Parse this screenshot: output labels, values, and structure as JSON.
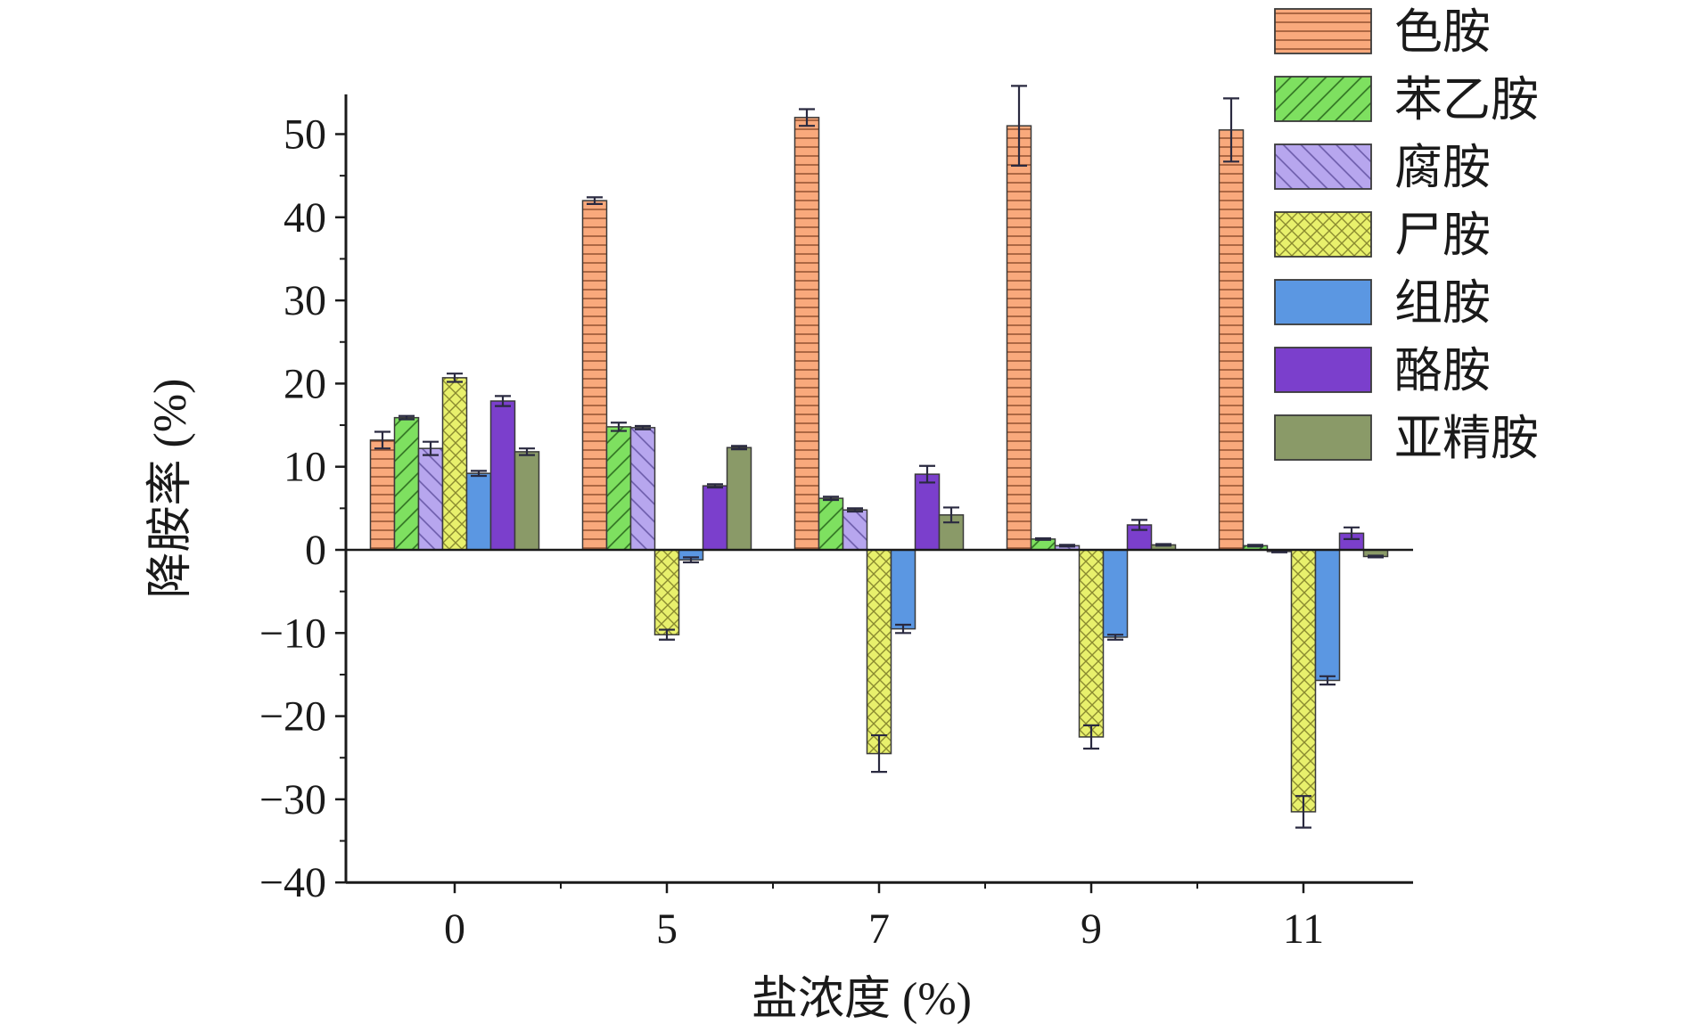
{
  "chart_data": {
    "type": "bar",
    "xlabel": "盐浓度 (%)",
    "ylabel": "降胺率 (%)",
    "categories": [
      "0",
      "5",
      "7",
      "9",
      "11"
    ],
    "ylim": [
      -40,
      55
    ],
    "yticks": [
      "50",
      "40",
      "30",
      "20",
      "10",
      "0",
      "−10",
      "−20",
      "−30",
      "−40"
    ],
    "ytick_values": [
      50,
      40,
      30,
      20,
      10,
      0,
      -10,
      -20,
      -30,
      -40
    ],
    "legend_position": "top-right",
    "grid": false,
    "series": [
      {
        "name": "色胺",
        "values": [
          13.2,
          42.0,
          52.0,
          51.0,
          50.5
        ],
        "errors": [
          1.0,
          0.4,
          1.0,
          4.8,
          3.8
        ],
        "color": "#f9a97c",
        "pattern": "hlines"
      },
      {
        "name": "苯乙胺",
        "values": [
          15.9,
          14.8,
          6.2,
          1.3,
          0.5
        ],
        "errors": [
          0.2,
          0.5,
          0.2,
          0.1,
          0.1
        ],
        "color": "#7ee060",
        "pattern": "diag-up"
      },
      {
        "name": "腐胺",
        "values": [
          12.2,
          14.7,
          4.8,
          0.5,
          -0.2
        ],
        "errors": [
          0.8,
          0.2,
          0.2,
          0.1,
          0.1
        ],
        "color": "#b7a6ee",
        "pattern": "diag-down"
      },
      {
        "name": "尸胺",
        "values": [
          20.7,
          -10.2,
          -24.5,
          -22.5,
          -31.5
        ],
        "errors": [
          0.5,
          0.6,
          2.2,
          1.4,
          1.9
        ],
        "color": "#e8f06c",
        "pattern": "crosshatch"
      },
      {
        "name": "组胺",
        "values": [
          9.2,
          -1.2,
          -9.5,
          -10.5,
          -15.7
        ],
        "errors": [
          0.3,
          0.3,
          0.5,
          0.3,
          0.5
        ],
        "color": "#5b97e2",
        "pattern": "none"
      },
      {
        "name": "酪胺",
        "values": [
          17.9,
          7.7,
          9.1,
          3.0,
          2.0
        ],
        "errors": [
          0.6,
          0.2,
          1.0,
          0.6,
          0.7
        ],
        "color": "#7b3fcc",
        "pattern": "none"
      },
      {
        "name": "亚精胺",
        "values": [
          11.8,
          12.3,
          4.2,
          0.6,
          -0.8
        ],
        "errors": [
          0.4,
          0.2,
          0.9,
          0.1,
          0.1
        ],
        "color": "#8a9a68",
        "pattern": "none"
      }
    ]
  }
}
